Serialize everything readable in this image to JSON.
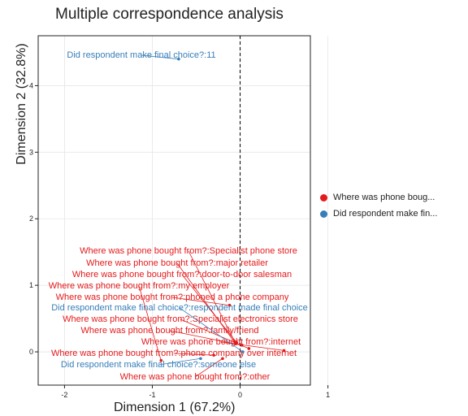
{
  "chart_data": {
    "type": "scatter",
    "title": "Multiple correspondence analysis",
    "xlabel": "Dimension 1 (67.2%)",
    "ylabel": "Dimension 2 (32.8%)",
    "xlim": [
      -2.3,
      0.8
    ],
    "ylim": [
      -0.5,
      4.75
    ],
    "x_ticks": [
      -2,
      -1,
      0,
      1
    ],
    "y_ticks": [
      0,
      1,
      2,
      3,
      4
    ],
    "grid": true,
    "reference_lines": {
      "x": 0
    },
    "legend_position": "right",
    "series": [
      {
        "name": "Where was phone boug...",
        "color": "#e41a1c",
        "points": [
          {
            "label": "Where was phone bought from?:Specialist phone store",
            "x": -0.06,
            "y": 0.15
          },
          {
            "label": "Where was phone bought from?:major retailer",
            "x": -0.05,
            "y": 0.12
          },
          {
            "label": "Where was phone bought from?:door-to-door salesman",
            "x": -0.04,
            "y": 0.14
          },
          {
            "label": "Where was phone bought from?:my employer",
            "x": -0.9,
            "y": -0.13
          },
          {
            "label": "Where was phone bought from?:phoned a phone company",
            "x": -0.12,
            "y": 0.7
          },
          {
            "label": "Where was phone bought from?:Specialist electronics store",
            "x": 0.1,
            "y": 0.05
          },
          {
            "label": "Where was phone bought from?:family/friend",
            "x": 0.02,
            "y": 0.1
          },
          {
            "label": "Where was phone bought from?:internet",
            "x": 0.5,
            "y": 0.02
          },
          {
            "label": "Where was phone bought from?:phone company over internet",
            "x": -0.3,
            "y": -0.05
          },
          {
            "label": "Where was phone bought from?:other",
            "x": -0.2,
            "y": -0.1
          }
        ]
      },
      {
        "name": "Did respondent make fin...",
        "color": "#377eb8",
        "points": [
          {
            "label": "Did respondent make final choice?:11",
            "x": -0.7,
            "y": 4.4
          },
          {
            "label": "Did respondent make final choice?:respondent made final choice",
            "x": 0.03,
            "y": 0.0
          },
          {
            "label": "Did respondent make final choice?:someone else",
            "x": -0.45,
            "y": -0.1
          }
        ]
      }
    ]
  }
}
